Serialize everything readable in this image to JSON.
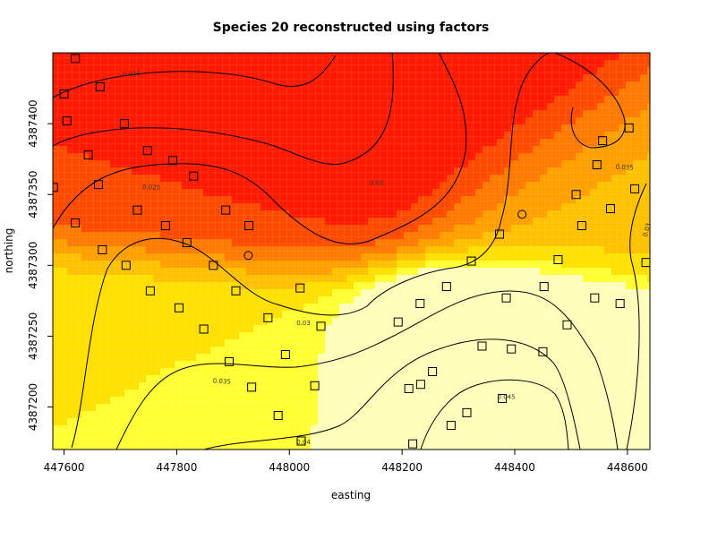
{
  "chart_data": {
    "type": "heatmap",
    "subtype": "filled-contour-map",
    "title": "Species 20 reconstructed using factors",
    "xlabel": "easting",
    "ylabel": "northing",
    "xlim": [
      447580,
      448640
    ],
    "ylim": [
      4387170,
      4387450
    ],
    "x_ticks": [
      447600,
      447800,
      448000,
      448200,
      448400,
      448600
    ],
    "y_ticks": [
      4387200,
      4387250,
      4387300,
      4387350,
      4387400
    ],
    "color_scale": {
      "low_color": "#ff0000",
      "mid_color": "#ffd700",
      "high_color": "#ffffcc",
      "min_value": 0.012,
      "max_value": 0.05
    },
    "contour_labels": [
      {
        "label": "0.015",
        "x": 447720,
        "y": 4387435,
        "angle": 2
      },
      {
        "label": "0.02",
        "x": 448155,
        "y": 4387358,
        "angle": 0
      },
      {
        "label": "0.025",
        "x": 447755,
        "y": 4387355,
        "angle": -3
      },
      {
        "label": "0.03",
        "x": 448025,
        "y": 4387259,
        "angle": 0
      },
      {
        "label": "0.03",
        "x": 448635,
        "y": 4387325,
        "angle": 75
      },
      {
        "label": "0.035",
        "x": 447880,
        "y": 4387218,
        "angle": -3
      },
      {
        "label": "0.035",
        "x": 448595,
        "y": 4387369,
        "angle": -3
      },
      {
        "label": "0.04",
        "x": 448025,
        "y": 4387175,
        "angle": 0
      },
      {
        "label": "0.045",
        "x": 448385,
        "y": 4387207,
        "angle": 0
      }
    ],
    "sample_points_squares": [
      [
        447620,
        4387446
      ],
      [
        447600,
        4387421
      ],
      [
        447664,
        4387426
      ],
      [
        447707,
        4387400
      ],
      [
        447605,
        4387402
      ],
      [
        447643,
        4387378
      ],
      [
        447748,
        4387381
      ],
      [
        447793,
        4387374
      ],
      [
        447581,
        4387355
      ],
      [
        447661,
        4387357
      ],
      [
        447830,
        4387363
      ],
      [
        447730,
        4387339
      ],
      [
        447620,
        4387330
      ],
      [
        447780,
        4387328
      ],
      [
        447887,
        4387339
      ],
      [
        447928,
        4387328
      ],
      [
        447668,
        4387311
      ],
      [
        447818,
        4387316
      ],
      [
        447710,
        4387300
      ],
      [
        447865,
        4387300
      ],
      [
        447753,
        4387282
      ],
      [
        447804,
        4387270
      ],
      [
        447905,
        4387282
      ],
      [
        447962,
        4387263
      ],
      [
        448019,
        4387284
      ],
      [
        447848,
        4387255
      ],
      [
        448056,
        4387257
      ],
      [
        447993,
        4387237
      ],
      [
        447893,
        4387232
      ],
      [
        447933,
        4387214
      ],
      [
        448045,
        4387215
      ],
      [
        447980,
        4387194
      ],
      [
        448021,
        4387176
      ],
      [
        448193,
        4387260
      ],
      [
        448232,
        4387273
      ],
      [
        448279,
        4387285
      ],
      [
        448323,
        4387303
      ],
      [
        448373,
        4387322
      ],
      [
        448233,
        4387216
      ],
      [
        448254,
        4387225
      ],
      [
        448212,
        4387213
      ],
      [
        448287,
        4387187
      ],
      [
        448315,
        4387196
      ],
      [
        448378,
        4387206
      ],
      [
        448394,
        4387241
      ],
      [
        448450,
        4387239
      ],
      [
        448342,
        4387243
      ],
      [
        448385,
        4387277
      ],
      [
        448452,
        4387285
      ],
      [
        448493,
        4387258
      ],
      [
        448477,
        4387304
      ],
      [
        448519,
        4387328
      ],
      [
        448509,
        4387350
      ],
      [
        448546,
        4387371
      ],
      [
        448556,
        4387388
      ],
      [
        448603,
        4387397
      ],
      [
        448587,
        4387273
      ],
      [
        448570,
        4387340
      ],
      [
        448613,
        4387354
      ],
      [
        448633,
        4387302
      ],
      [
        448219,
        4387174
      ],
      [
        448542,
        4387277
      ]
    ],
    "sample_points_circles": [
      [
        447927,
        4387307
      ],
      [
        448413,
        4387336
      ]
    ]
  }
}
